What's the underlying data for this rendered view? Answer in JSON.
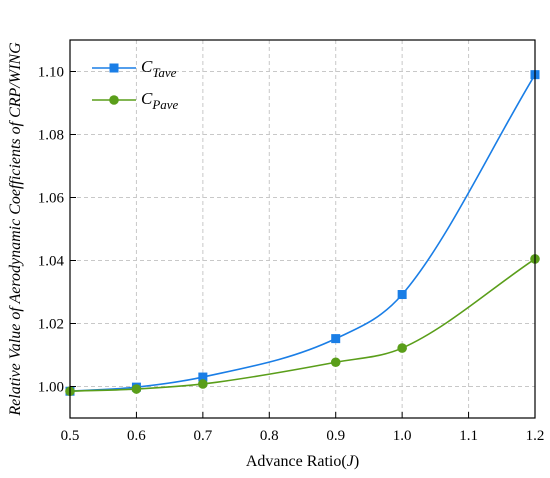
{
  "chart_data": {
    "type": "line",
    "title": "",
    "xlabel": "Advance Ratio(J)",
    "xlabel_prefix": "Advance Ratio(",
    "xlabel_var": "J",
    "xlabel_suffix": ")",
    "ylabel": "Relative Value of Aerodynamic Coefficients of CRP/WING",
    "xlim": [
      0.5,
      1.2
    ],
    "ylim": [
      0.99,
      1.11
    ],
    "xticks": [
      "0.5",
      "0.6",
      "0.7",
      "0.8",
      "0.9",
      "1.0",
      "1.1",
      "1.2"
    ],
    "yticks": [
      "1.00",
      "1.02",
      "1.04",
      "1.06",
      "1.08",
      "1.10"
    ],
    "grid": true,
    "legend_position": "top-left",
    "series": [
      {
        "name": "C_Tave",
        "label_main": "C",
        "label_sub": "Tave",
        "color": "#1a7ee6",
        "marker": "square",
        "x": [
          0.5,
          0.6,
          0.7,
          0.9,
          1.0,
          1.2
        ],
        "y": [
          0.9985,
          0.9998,
          1.003,
          1.0152,
          1.0292,
          1.099
        ]
      },
      {
        "name": "C_Pave",
        "label_main": "C",
        "label_sub": "Pave",
        "color": "#5a9e1a",
        "marker": "circle",
        "x": [
          0.5,
          0.6,
          0.7,
          0.9,
          1.0,
          1.2
        ],
        "y": [
          0.9985,
          0.9992,
          1.0008,
          1.0077,
          1.0122,
          1.0405
        ]
      }
    ]
  }
}
